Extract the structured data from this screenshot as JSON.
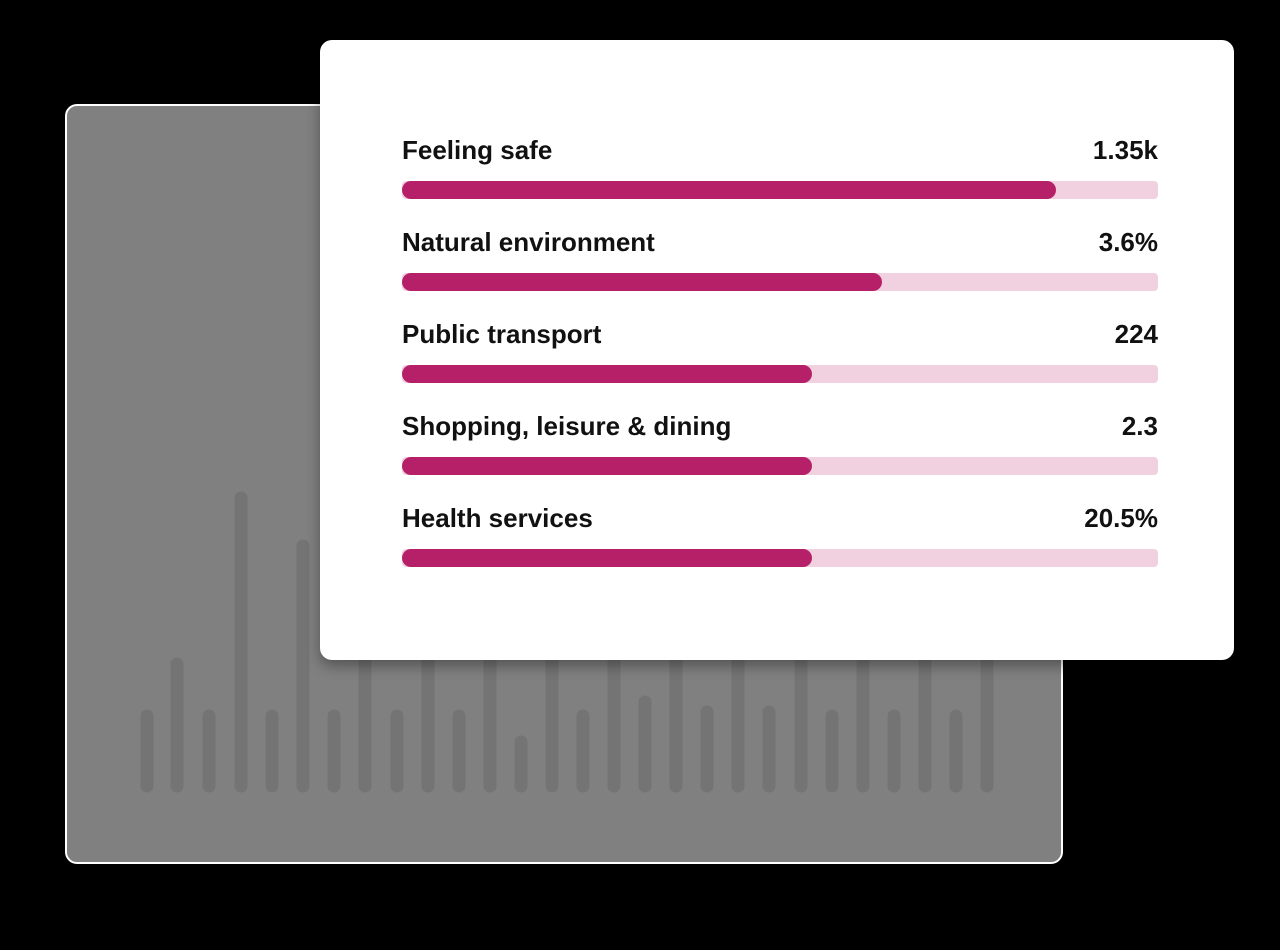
{
  "colors": {
    "background": "#000000",
    "back_card": "#808080",
    "front_card": "#ffffff",
    "bar_fill": "#b52068",
    "bar_track": "#f1d1e0",
    "text": "#111111",
    "decor_bars": "#747474"
  },
  "metrics": [
    {
      "label": "Feeling safe",
      "value": "1.35k",
      "fill_fraction": 0.865
    },
    {
      "label": "Natural environment",
      "value": "3.6%",
      "fill_fraction": 0.635
    },
    {
      "label": "Public transport",
      "value": "224",
      "fill_fraction": 0.542
    },
    {
      "label": "Shopping, leisure & dining",
      "value": "2.3",
      "fill_fraction": 0.542
    },
    {
      "label": "Health services",
      "value": "20.5%",
      "fill_fraction": 0.542
    }
  ]
}
